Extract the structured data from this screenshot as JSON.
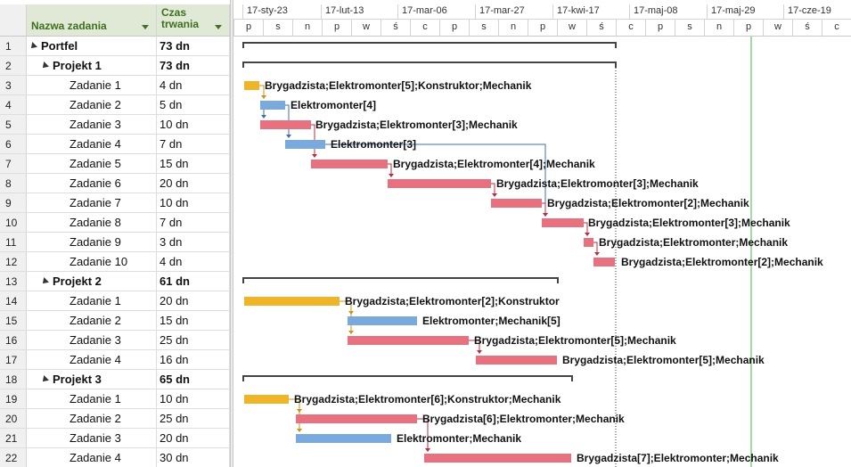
{
  "headers": {
    "task_name": "Nazwa zadania",
    "duration_line1": "Czas",
    "duration_line2": "trwania"
  },
  "timescale": {
    "major": [
      "17-sty-23",
      "17-lut-13",
      "17-mar-06",
      "17-mar-27",
      "17-kwi-17",
      "17-maj-08",
      "17-maj-29",
      "17-cze-19"
    ],
    "minor": [
      "p",
      "s",
      "n",
      "p",
      "w",
      "ś",
      "c",
      "p",
      "s",
      "n",
      "p",
      "w",
      "ś",
      "c",
      "p",
      "s",
      "n",
      "p",
      "w",
      "ś",
      "c"
    ]
  },
  "colors": {
    "konstruktor": "#f0b429",
    "elektromonter": "#7aa9dd",
    "brygadzista": "#e8717f",
    "summary": "#444444",
    "today_line": "#4caf50",
    "deadline_line": "#333333"
  },
  "tasks": [
    {
      "id": "1",
      "name": "Portfel",
      "duration": "73 dn",
      "level": 0,
      "summary": true
    },
    {
      "id": "2",
      "name": "Projekt 1",
      "duration": "73 dn",
      "level": 1,
      "summary": true
    },
    {
      "id": "3",
      "name": "Zadanie 1",
      "duration": "4 dn",
      "level": 2,
      "resources": "Brygadzista;Elektromonter[5];Konstruktor;Mechanik",
      "kind": "konstruktor"
    },
    {
      "id": "4",
      "name": "Zadanie 2",
      "duration": "5 dn",
      "level": 2,
      "resources": "Elektromonter[4]",
      "kind": "elektromonter"
    },
    {
      "id": "5",
      "name": "Zadanie 3",
      "duration": "10 dn",
      "level": 2,
      "resources": "Brygadzista;Elektromonter[3];Mechanik",
      "kind": "brygadzista"
    },
    {
      "id": "6",
      "name": "Zadanie 4",
      "duration": "7 dn",
      "level": 2,
      "resources": "Elektromonter[3]",
      "kind": "elektromonter"
    },
    {
      "id": "7",
      "name": "Zadanie 5",
      "duration": "15 dn",
      "level": 2,
      "resources": "Brygadzista;Elektromonter[4];Mechanik",
      "kind": "brygadzista"
    },
    {
      "id": "8",
      "name": "Zadanie 6",
      "duration": "20 dn",
      "level": 2,
      "resources": "Brygadzista;Elektromonter[3];Mechanik",
      "kind": "brygadzista"
    },
    {
      "id": "9",
      "name": "Zadanie 7",
      "duration": "10 dn",
      "level": 2,
      "resources": "Brygadzista;Elektromonter[2];Mechanik",
      "kind": "brygadzista"
    },
    {
      "id": "10",
      "name": "Zadanie 8",
      "duration": "7 dn",
      "level": 2,
      "resources": "Brygadzista;Elektromonter[3];Mechanik",
      "kind": "brygadzista"
    },
    {
      "id": "11",
      "name": "Zadanie 9",
      "duration": "3 dn",
      "level": 2,
      "resources": "Brygadzista;Elektromonter;Mechanik",
      "kind": "brygadzista"
    },
    {
      "id": "12",
      "name": "Zadanie 10",
      "duration": "4 dn",
      "level": 2,
      "resources": "Brygadzista;Elektromonter[2];Mechanik",
      "kind": "brygadzista"
    },
    {
      "id": "13",
      "name": "Projekt 2",
      "duration": "61 dn",
      "level": 1,
      "summary": true
    },
    {
      "id": "14",
      "name": "Zadanie 1",
      "duration": "20 dn",
      "level": 2,
      "resources": "Brygadzista;Elektromonter[2];Konstruktor",
      "kind": "konstruktor"
    },
    {
      "id": "15",
      "name": "Zadanie 2",
      "duration": "15 dn",
      "level": 2,
      "resources": "Elektromonter;Mechanik[5]",
      "kind": "elektromonter"
    },
    {
      "id": "16",
      "name": "Zadanie 3",
      "duration": "25 dn",
      "level": 2,
      "resources": "Brygadzista;Elektromonter[5];Mechanik",
      "kind": "brygadzista"
    },
    {
      "id": "17",
      "name": "Zadanie 4",
      "duration": "16 dn",
      "level": 2,
      "resources": "Brygadzista;Elektromonter[5];Mechanik",
      "kind": "brygadzista"
    },
    {
      "id": "18",
      "name": "Projekt 3",
      "duration": "65 dn",
      "level": 1,
      "summary": true
    },
    {
      "id": "19",
      "name": "Zadanie 1",
      "duration": "10 dn",
      "level": 2,
      "resources": "Brygadzista;Elektromonter[6];Konstruktor;Mechanik",
      "kind": "konstruktor"
    },
    {
      "id": "20",
      "name": "Zadanie 2",
      "duration": "25 dn",
      "level": 2,
      "resources": "Brygadzista[6];Elektromonter;Mechanik",
      "kind": "brygadzista"
    },
    {
      "id": "21",
      "name": "Zadanie 3",
      "duration": "20 dn",
      "level": 2,
      "resources": "Elektromonter;Mechanik",
      "kind": "elektromonter"
    },
    {
      "id": "22",
      "name": "Zadanie 4",
      "duration": "30 dn",
      "level": 2,
      "resources": "Brygadzista[7];Elektromonter;Mechanik",
      "kind": "brygadzista"
    }
  ]
}
